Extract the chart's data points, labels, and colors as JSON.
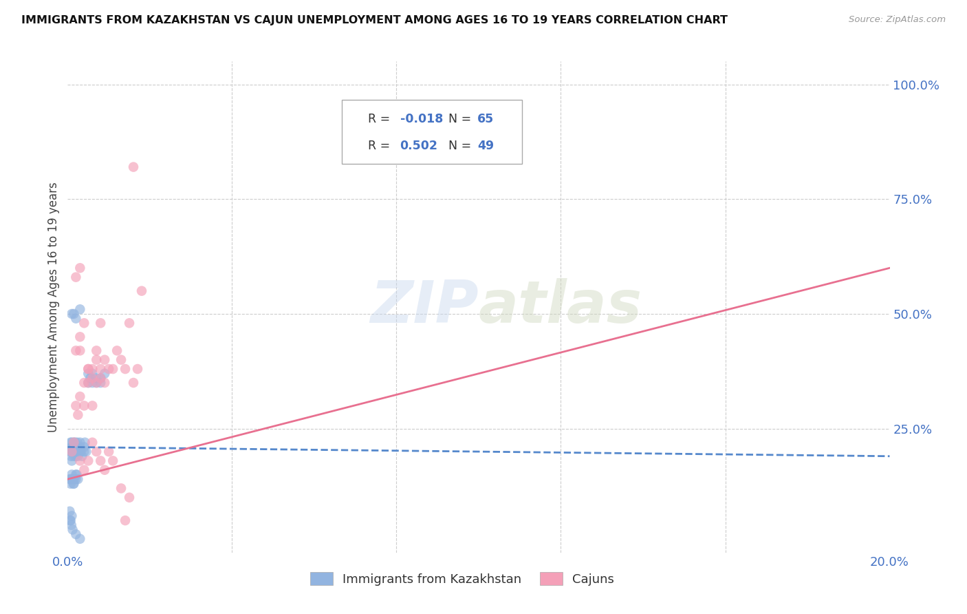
{
  "title": "IMMIGRANTS FROM KAZAKHSTAN VS CAJUN UNEMPLOYMENT AMONG AGES 16 TO 19 YEARS CORRELATION CHART",
  "source": "Source: ZipAtlas.com",
  "ylabel": "Unemployment Among Ages 16 to 19 years",
  "xlim": [
    0.0,
    0.2
  ],
  "ylim": [
    -0.02,
    1.05
  ],
  "right_axis_color": "#4472C4",
  "grid_color": "#cccccc",
  "watermark_color": "#c8d8ee",
  "background_color": "#ffffff",
  "kazakhstan_color": "#92B4E0",
  "cajun_color": "#F4A0B8",
  "kaz_trend_color": "#5588CC",
  "caj_trend_color": "#E87090",
  "kazakhstan_R": -0.018,
  "kazakhstan_N": 65,
  "cajun_R": 0.502,
  "cajun_N": 49,
  "kaz_trend_x": [
    0.0,
    0.2
  ],
  "kaz_trend_y": [
    0.21,
    0.19
  ],
  "caj_trend_x": [
    0.0,
    0.2
  ],
  "caj_trend_y": [
    0.14,
    0.6
  ],
  "kazakhstan_x": [
    0.0005,
    0.0007,
    0.0008,
    0.0009,
    0.001,
    0.001,
    0.001,
    0.0012,
    0.0013,
    0.0015,
    0.0015,
    0.0016,
    0.0017,
    0.0018,
    0.002,
    0.002,
    0.002,
    0.0022,
    0.0023,
    0.0025,
    0.0025,
    0.003,
    0.003,
    0.003,
    0.0032,
    0.0035,
    0.004,
    0.004,
    0.0042,
    0.0045,
    0.005,
    0.005,
    0.0055,
    0.006,
    0.006,
    0.007,
    0.007,
    0.008,
    0.008,
    0.009,
    0.001,
    0.0015,
    0.002,
    0.003,
    0.0005,
    0.0007,
    0.0008,
    0.001,
    0.0012,
    0.0014,
    0.0016,
    0.002,
    0.0025,
    0.003,
    0.0005,
    0.0006,
    0.0007,
    0.0009,
    0.001,
    0.0012,
    0.0015,
    0.002,
    0.0022,
    0.002,
    0.003
  ],
  "kazakhstan_y": [
    0.2,
    0.22,
    0.19,
    0.21,
    0.22,
    0.2,
    0.18,
    0.21,
    0.2,
    0.22,
    0.19,
    0.21,
    0.2,
    0.22,
    0.2,
    0.19,
    0.21,
    0.2,
    0.22,
    0.2,
    0.19,
    0.21,
    0.2,
    0.22,
    0.2,
    0.19,
    0.21,
    0.2,
    0.22,
    0.2,
    0.35,
    0.37,
    0.36,
    0.35,
    0.37,
    0.36,
    0.35,
    0.36,
    0.35,
    0.37,
    0.5,
    0.5,
    0.49,
    0.51,
    0.14,
    0.13,
    0.14,
    0.15,
    0.14,
    0.13,
    0.14,
    0.15,
    0.14,
    0.2,
    0.07,
    0.05,
    0.05,
    0.04,
    0.06,
    0.03,
    0.13,
    0.14,
    0.15,
    0.02,
    0.01
  ],
  "cajun_x": [
    0.001,
    0.0015,
    0.002,
    0.0025,
    0.003,
    0.003,
    0.004,
    0.004,
    0.005,
    0.005,
    0.006,
    0.006,
    0.007,
    0.007,
    0.008,
    0.008,
    0.009,
    0.01,
    0.011,
    0.012,
    0.013,
    0.014,
    0.015,
    0.016,
    0.017,
    0.018,
    0.003,
    0.004,
    0.005,
    0.006,
    0.007,
    0.008,
    0.009,
    0.002,
    0.003,
    0.004,
    0.005,
    0.006,
    0.007,
    0.008,
    0.009,
    0.01,
    0.011,
    0.013,
    0.014,
    0.015,
    0.002,
    0.003,
    0.016
  ],
  "cajun_y": [
    0.2,
    0.22,
    0.3,
    0.28,
    0.32,
    0.42,
    0.3,
    0.35,
    0.35,
    0.38,
    0.3,
    0.38,
    0.42,
    0.4,
    0.38,
    0.48,
    0.35,
    0.38,
    0.38,
    0.42,
    0.4,
    0.38,
    0.48,
    0.35,
    0.38,
    0.55,
    0.45,
    0.48,
    0.38,
    0.36,
    0.35,
    0.36,
    0.4,
    0.42,
    0.18,
    0.16,
    0.18,
    0.22,
    0.2,
    0.18,
    0.16,
    0.2,
    0.18,
    0.12,
    0.05,
    0.1,
    0.58,
    0.6,
    0.82
  ]
}
